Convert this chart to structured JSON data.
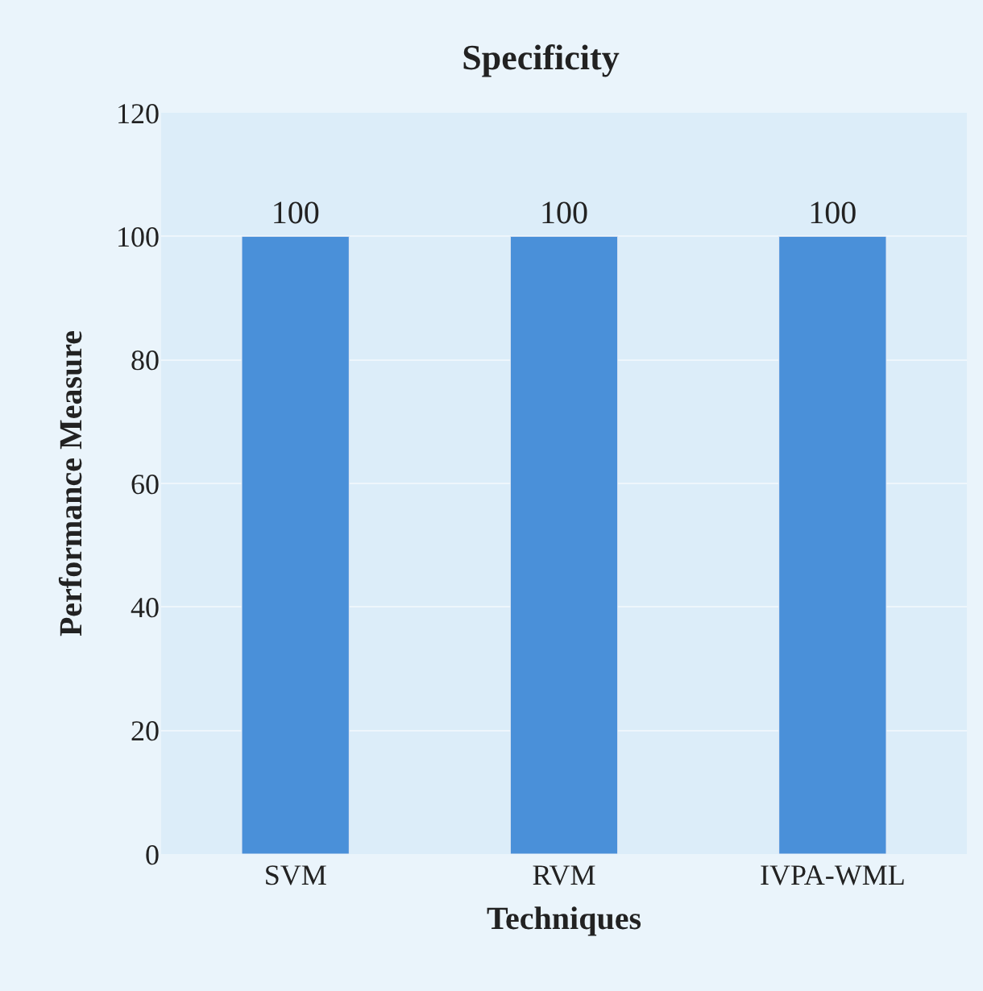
{
  "chart_data": {
    "type": "bar",
    "title": "Specificity",
    "xlabel": "Techniques",
    "ylabel": "Performance Measure",
    "categories": [
      "SVM",
      "RVM",
      "IVPA-WML"
    ],
    "values": [
      100,
      100,
      100
    ],
    "color": "#4a90d9",
    "ylim": [
      0,
      120
    ],
    "yticks": [
      0,
      20,
      40,
      60,
      80,
      100,
      120
    ],
    "grid": "y",
    "data_labels": true
  }
}
